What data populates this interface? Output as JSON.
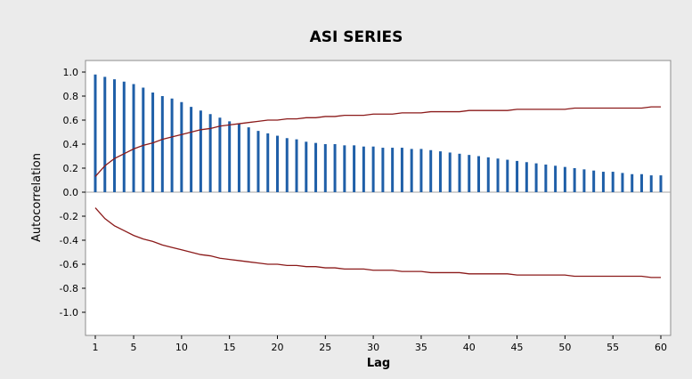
{
  "chart_data": {
    "type": "bar",
    "title": "ASI SERIES",
    "xlabel": "Lag",
    "ylabel": "Autocorrelation",
    "x_ticks": [
      "1",
      "5",
      "10",
      "15",
      "20",
      "25",
      "30",
      "35",
      "40",
      "45",
      "50",
      "55",
      "60"
    ],
    "y_ticks": [
      "-1.0",
      "-0.8",
      "-0.6",
      "-0.4",
      "-0.2",
      "0.0",
      "0.2",
      "0.4",
      "0.6",
      "0.8",
      "1.0"
    ],
    "xlim": [
      0,
      61
    ],
    "ylim": [
      -1.1,
      1.1
    ],
    "grid": false,
    "lags": [
      1,
      2,
      3,
      4,
      5,
      6,
      7,
      8,
      9,
      10,
      11,
      12,
      13,
      14,
      15,
      16,
      17,
      18,
      19,
      20,
      21,
      22,
      23,
      24,
      25,
      26,
      27,
      28,
      29,
      30,
      31,
      32,
      33,
      34,
      35,
      36,
      37,
      38,
      39,
      40,
      41,
      42,
      43,
      44,
      45,
      46,
      47,
      48,
      49,
      50,
      51,
      52,
      53,
      54,
      55,
      56,
      57,
      58,
      59,
      60
    ],
    "values": [
      0.98,
      0.96,
      0.94,
      0.92,
      0.9,
      0.87,
      0.83,
      0.8,
      0.78,
      0.75,
      0.71,
      0.68,
      0.65,
      0.62,
      0.59,
      0.57,
      0.54,
      0.51,
      0.49,
      0.47,
      0.45,
      0.44,
      0.42,
      0.41,
      0.4,
      0.4,
      0.39,
      0.39,
      0.38,
      0.38,
      0.37,
      0.37,
      0.37,
      0.36,
      0.36,
      0.35,
      0.34,
      0.33,
      0.32,
      0.31,
      0.3,
      0.29,
      0.28,
      0.27,
      0.26,
      0.25,
      0.24,
      0.23,
      0.22,
      0.21,
      0.2,
      0.19,
      0.18,
      0.17,
      0.17,
      0.16,
      0.15,
      0.15,
      0.14,
      0.14
    ],
    "upper_limit": [
      0.13,
      0.22,
      0.28,
      0.32,
      0.36,
      0.39,
      0.41,
      0.44,
      0.46,
      0.48,
      0.5,
      0.52,
      0.53,
      0.55,
      0.56,
      0.57,
      0.58,
      0.59,
      0.6,
      0.6,
      0.61,
      0.61,
      0.62,
      0.62,
      0.63,
      0.63,
      0.64,
      0.64,
      0.64,
      0.65,
      0.65,
      0.65,
      0.66,
      0.66,
      0.66,
      0.67,
      0.67,
      0.67,
      0.67,
      0.68,
      0.68,
      0.68,
      0.68,
      0.68,
      0.69,
      0.69,
      0.69,
      0.69,
      0.69,
      0.69,
      0.7,
      0.7,
      0.7,
      0.7,
      0.7,
      0.7,
      0.7,
      0.7,
      0.71,
      0.71
    ],
    "colors": {
      "bars": "#1f5fa8",
      "limits": "#8b1a1a",
      "outer_bg": "#ebebeb",
      "plot_bg": "#ffffff",
      "zero_line": "#a6a6a6"
    }
  }
}
